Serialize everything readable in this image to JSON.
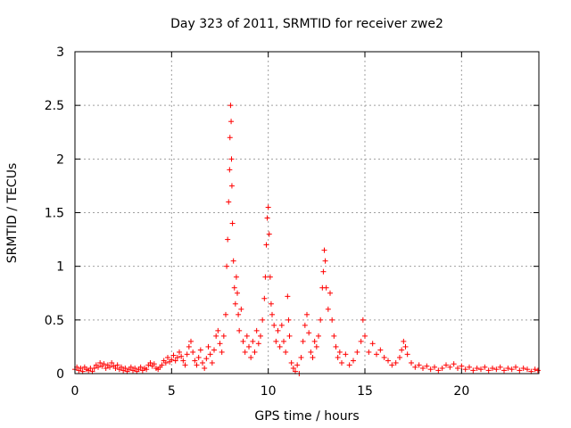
{
  "chart_data": {
    "type": "scatter",
    "title": "Day 323 of 2011, SRMTID for receiver zwe2",
    "xlabel": "GPS time / hours",
    "ylabel": "SRMTID / TECUs",
    "xlim": [
      0,
      24
    ],
    "ylim": [
      0,
      3
    ],
    "x_ticks": [
      0,
      5,
      10,
      15,
      20
    ],
    "y_ticks": [
      0,
      0.5,
      1,
      1.5,
      2,
      2.5,
      3
    ],
    "x_tick_labels": [
      "0",
      "5",
      "10",
      "15",
      "20"
    ],
    "y_tick_labels": [
      "0",
      "0.5",
      "1",
      "1.5",
      "2",
      "2.5",
      "3"
    ],
    "grid": true,
    "legend": "none",
    "marker": "plus",
    "color": "#ff0000",
    "series": [
      {
        "points": [
          [
            0.0,
            0.04
          ],
          [
            0.1,
            0.06
          ],
          [
            0.2,
            0.03
          ],
          [
            0.3,
            0.05
          ],
          [
            0.4,
            0.02
          ],
          [
            0.5,
            0.06
          ],
          [
            0.6,
            0.04
          ],
          [
            0.7,
            0.03
          ],
          [
            0.8,
            0.05
          ],
          [
            0.9,
            0.02
          ],
          [
            1.0,
            0.05
          ],
          [
            1.1,
            0.08
          ],
          [
            1.2,
            0.06
          ],
          [
            1.3,
            0.1
          ],
          [
            1.4,
            0.07
          ],
          [
            1.5,
            0.09
          ],
          [
            1.6,
            0.05
          ],
          [
            1.7,
            0.08
          ],
          [
            1.8,
            0.06
          ],
          [
            1.9,
            0.1
          ],
          [
            2.0,
            0.07
          ],
          [
            2.1,
            0.05
          ],
          [
            2.2,
            0.08
          ],
          [
            2.3,
            0.04
          ],
          [
            2.4,
            0.06
          ],
          [
            2.5,
            0.03
          ],
          [
            2.6,
            0.05
          ],
          [
            2.7,
            0.02
          ],
          [
            2.8,
            0.04
          ],
          [
            2.9,
            0.06
          ],
          [
            3.0,
            0.03
          ],
          [
            3.1,
            0.05
          ],
          [
            3.2,
            0.02
          ],
          [
            3.3,
            0.04
          ],
          [
            3.4,
            0.06
          ],
          [
            3.5,
            0.03
          ],
          [
            3.6,
            0.05
          ],
          [
            3.7,
            0.04
          ],
          [
            3.8,
            0.08
          ],
          [
            3.9,
            0.1
          ],
          [
            4.0,
            0.07
          ],
          [
            4.1,
            0.09
          ],
          [
            4.2,
            0.05
          ],
          [
            4.3,
            0.04
          ],
          [
            4.4,
            0.06
          ],
          [
            4.5,
            0.08
          ],
          [
            4.6,
            0.12
          ],
          [
            4.7,
            0.1
          ],
          [
            4.8,
            0.15
          ],
          [
            4.9,
            0.11
          ],
          [
            5.0,
            0.13
          ],
          [
            5.1,
            0.17
          ],
          [
            5.2,
            0.12
          ],
          [
            5.3,
            0.15
          ],
          [
            5.4,
            0.2
          ],
          [
            5.5,
            0.16
          ],
          [
            5.6,
            0.12
          ],
          [
            5.7,
            0.08
          ],
          [
            5.8,
            0.18
          ],
          [
            5.9,
            0.25
          ],
          [
            6.0,
            0.3
          ],
          [
            6.1,
            0.2
          ],
          [
            6.2,
            0.12
          ],
          [
            6.3,
            0.08
          ],
          [
            6.4,
            0.15
          ],
          [
            6.5,
            0.22
          ],
          [
            6.6,
            0.1
          ],
          [
            6.7,
            0.05
          ],
          [
            6.8,
            0.14
          ],
          [
            6.9,
            0.25
          ],
          [
            7.0,
            0.18
          ],
          [
            7.1,
            0.1
          ],
          [
            7.2,
            0.22
          ],
          [
            7.3,
            0.35
          ],
          [
            7.4,
            0.4
          ],
          [
            7.5,
            0.28
          ],
          [
            7.6,
            0.2
          ],
          [
            7.7,
            0.35
          ],
          [
            7.8,
            0.55
          ],
          [
            7.85,
            1.0
          ],
          [
            7.9,
            1.25
          ],
          [
            7.95,
            1.6
          ],
          [
            8.0,
            1.9
          ],
          [
            8.02,
            2.2
          ],
          [
            8.05,
            2.5
          ],
          [
            8.08,
            2.35
          ],
          [
            8.1,
            2.0
          ],
          [
            8.12,
            1.75
          ],
          [
            8.15,
            1.4
          ],
          [
            8.2,
            1.05
          ],
          [
            8.25,
            0.8
          ],
          [
            8.3,
            0.65
          ],
          [
            8.35,
            0.9
          ],
          [
            8.4,
            0.75
          ],
          [
            8.45,
            0.55
          ],
          [
            8.5,
            0.4
          ],
          [
            8.6,
            0.6
          ],
          [
            8.7,
            0.3
          ],
          [
            8.8,
            0.2
          ],
          [
            8.9,
            0.35
          ],
          [
            9.0,
            0.25
          ],
          [
            9.1,
            0.15
          ],
          [
            9.2,
            0.3
          ],
          [
            9.3,
            0.2
          ],
          [
            9.4,
            0.4
          ],
          [
            9.5,
            0.28
          ],
          [
            9.6,
            0.35
          ],
          [
            9.7,
            0.5
          ],
          [
            9.8,
            0.7
          ],
          [
            9.85,
            0.9
          ],
          [
            9.9,
            1.2
          ],
          [
            9.95,
            1.45
          ],
          [
            10.0,
            1.55
          ],
          [
            10.05,
            1.3
          ],
          [
            10.1,
            0.9
          ],
          [
            10.15,
            0.65
          ],
          [
            10.2,
            0.55
          ],
          [
            10.3,
            0.45
          ],
          [
            10.4,
            0.3
          ],
          [
            10.5,
            0.4
          ],
          [
            10.6,
            0.25
          ],
          [
            10.7,
            0.45
          ],
          [
            10.8,
            0.3
          ],
          [
            10.9,
            0.2
          ],
          [
            11.0,
            0.72
          ],
          [
            11.05,
            0.5
          ],
          [
            11.1,
            0.35
          ],
          [
            11.2,
            0.1
          ],
          [
            11.3,
            0.05
          ],
          [
            11.4,
            0.02
          ],
          [
            11.5,
            0.08
          ],
          [
            11.6,
            0.0
          ],
          [
            11.7,
            0.15
          ],
          [
            11.8,
            0.3
          ],
          [
            11.9,
            0.45
          ],
          [
            12.0,
            0.55
          ],
          [
            12.1,
            0.38
          ],
          [
            12.2,
            0.2
          ],
          [
            12.3,
            0.15
          ],
          [
            12.4,
            0.3
          ],
          [
            12.5,
            0.25
          ],
          [
            12.6,
            0.35
          ],
          [
            12.7,
            0.5
          ],
          [
            12.8,
            0.8
          ],
          [
            12.85,
            0.95
          ],
          [
            12.9,
            1.15
          ],
          [
            12.95,
            1.05
          ],
          [
            13.0,
            0.8
          ],
          [
            13.1,
            0.6
          ],
          [
            13.2,
            0.75
          ],
          [
            13.3,
            0.5
          ],
          [
            13.4,
            0.35
          ],
          [
            13.5,
            0.25
          ],
          [
            13.6,
            0.15
          ],
          [
            13.7,
            0.2
          ],
          [
            13.8,
            0.1
          ],
          [
            14.0,
            0.18
          ],
          [
            14.2,
            0.08
          ],
          [
            14.4,
            0.12
          ],
          [
            14.6,
            0.2
          ],
          [
            14.8,
            0.3
          ],
          [
            14.9,
            0.5
          ],
          [
            15.0,
            0.35
          ],
          [
            15.2,
            0.2
          ],
          [
            15.4,
            0.28
          ],
          [
            15.6,
            0.18
          ],
          [
            15.8,
            0.22
          ],
          [
            16.0,
            0.15
          ],
          [
            16.2,
            0.12
          ],
          [
            16.4,
            0.08
          ],
          [
            16.6,
            0.1
          ],
          [
            16.8,
            0.15
          ],
          [
            16.9,
            0.22
          ],
          [
            17.0,
            0.3
          ],
          [
            17.1,
            0.25
          ],
          [
            17.2,
            0.18
          ],
          [
            17.4,
            0.1
          ],
          [
            17.6,
            0.06
          ],
          [
            17.8,
            0.08
          ],
          [
            18.0,
            0.05
          ],
          [
            18.2,
            0.07
          ],
          [
            18.4,
            0.04
          ],
          [
            18.6,
            0.06
          ],
          [
            18.8,
            0.03
          ],
          [
            19.0,
            0.05
          ],
          [
            19.2,
            0.08
          ],
          [
            19.4,
            0.06
          ],
          [
            19.6,
            0.09
          ],
          [
            19.8,
            0.05
          ],
          [
            20.0,
            0.07
          ],
          [
            20.2,
            0.04
          ],
          [
            20.4,
            0.06
          ],
          [
            20.6,
            0.03
          ],
          [
            20.8,
            0.05
          ],
          [
            21.0,
            0.04
          ],
          [
            21.2,
            0.06
          ],
          [
            21.4,
            0.03
          ],
          [
            21.6,
            0.05
          ],
          [
            21.8,
            0.04
          ],
          [
            22.0,
            0.06
          ],
          [
            22.2,
            0.03
          ],
          [
            22.4,
            0.05
          ],
          [
            22.6,
            0.04
          ],
          [
            22.8,
            0.06
          ],
          [
            23.0,
            0.03
          ],
          [
            23.2,
            0.05
          ],
          [
            23.4,
            0.04
          ],
          [
            23.6,
            0.02
          ],
          [
            23.8,
            0.04
          ],
          [
            23.95,
            0.03
          ]
        ]
      }
    ]
  }
}
